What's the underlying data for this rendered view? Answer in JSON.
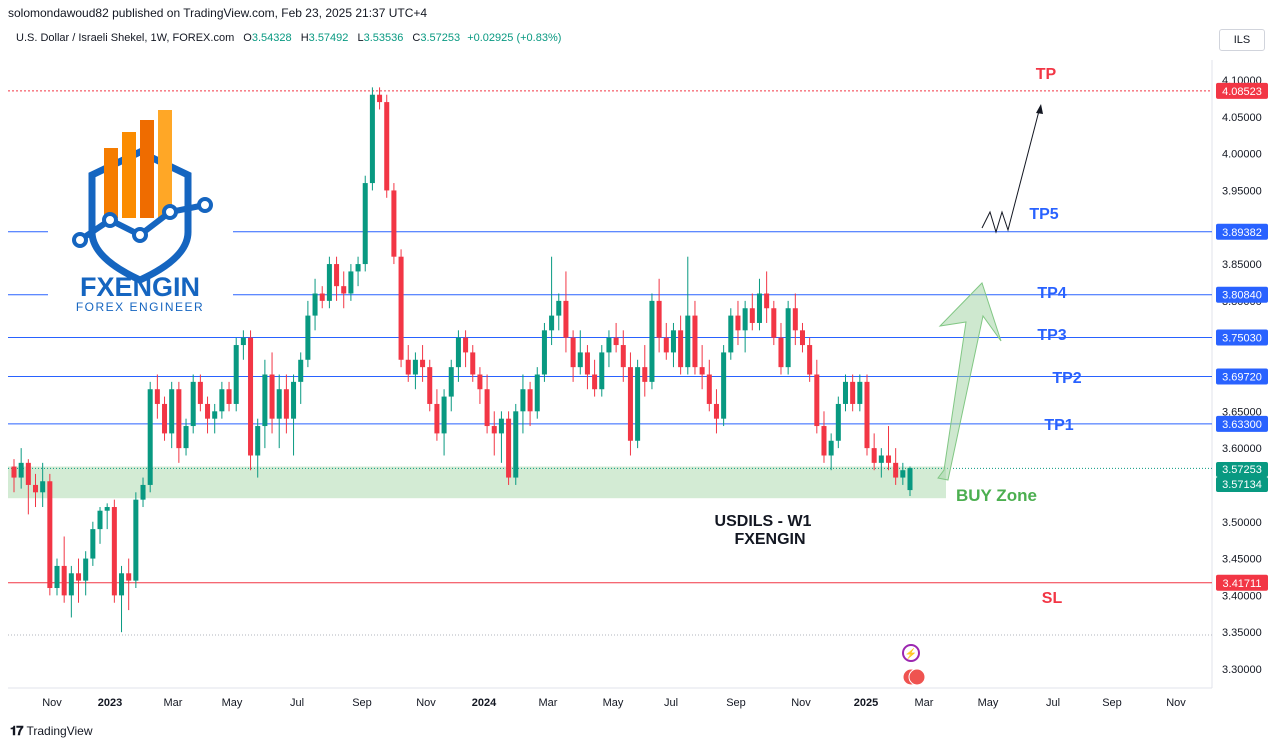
{
  "header": {
    "publisher": "solomondawoud82 published on TradingView.com, Feb 23, 2025 21:37 UTC+4",
    "symbol": "U.S. Dollar / Israeli Shekel, 1W, FOREX.com",
    "o_label": "O",
    "o_value": "3.54328",
    "h_label": "H",
    "h_value": "3.57492",
    "l_label": "L",
    "l_value": "3.53536",
    "c_label": "C",
    "c_value": "3.57253",
    "change": "+0.02925 (+0.83%)",
    "currency": "ILS"
  },
  "footer": {
    "brand": "TradingView"
  },
  "logo": {
    "name": "FXENGIN",
    "tagline": "FOREX ENGINEER"
  },
  "annotations": {
    "title_line1": "USDILS - W1",
    "title_line2": "FXENGIN",
    "buy_zone": "BUY Zone"
  },
  "colors": {
    "up": "#089981",
    "down": "#f23645",
    "tp_line": "#2962ff",
    "sl_line": "#f23645",
    "tp_text": "#2962ff",
    "buy_zone": "#c8e6c9",
    "buy_text": "#4caf50",
    "arrow": "#a5d6a7"
  },
  "chart_data": {
    "type": "candlestick",
    "symbol": "USDILS",
    "timeframe": "1W",
    "ylim": [
      3.27,
      4.12
    ],
    "y_ticks": [
      "4.10000",
      "4.05000",
      "4.00000",
      "3.95000",
      "3.90000",
      "3.85000",
      "3.80000",
      "3.75000",
      "3.70000",
      "3.65000",
      "3.60000",
      "3.55000",
      "3.50000",
      "3.45000",
      "3.40000",
      "3.35000",
      "3.30000"
    ],
    "x_labels": [
      "Nov",
      "2023",
      "Mar",
      "May",
      "Jul",
      "Sep",
      "Nov",
      "2024",
      "Mar",
      "May",
      "Jul",
      "Sep",
      "Nov",
      "2025",
      "Mar",
      "May",
      "Jul",
      "Sep",
      "Nov"
    ],
    "bold_x_labels": [
      "2023",
      "2024",
      "2025"
    ],
    "levels": [
      {
        "label": "TP",
        "value": 4.08523,
        "tag": "4.08523",
        "color": "#f23645",
        "style": "dotted"
      },
      {
        "label": "TP5",
        "value": 3.89382,
        "tag": "3.89382",
        "color": "#2962ff",
        "style": "solid"
      },
      {
        "label": "TP4",
        "value": 3.8084,
        "tag": "3.80840",
        "color": "#2962ff",
        "style": "solid"
      },
      {
        "label": "TP3",
        "value": 3.7503,
        "tag": "3.75030",
        "color": "#2962ff",
        "style": "solid"
      },
      {
        "label": "TP2",
        "value": 3.6972,
        "tag": "3.69720",
        "color": "#2962ff",
        "style": "solid"
      },
      {
        "label": "TP1",
        "value": 3.633,
        "tag": "3.63300",
        "color": "#2962ff",
        "style": "solid"
      },
      {
        "label": "SL",
        "value": 3.41711,
        "tag": "3.41711",
        "color": "#f23645",
        "style": "solid"
      }
    ],
    "price_tags": [
      {
        "value": 3.57253,
        "tag": "3.57253",
        "color": "#089981"
      },
      {
        "value": 3.57134,
        "tag": "3.57134",
        "color": "#089981"
      }
    ],
    "buy_zone": [
      3.532,
      3.575
    ],
    "candles": [
      [
        3.575,
        3.585,
        3.54,
        3.56
      ],
      [
        3.56,
        3.6,
        3.545,
        3.58
      ],
      [
        3.58,
        3.585,
        3.51,
        3.55
      ],
      [
        3.55,
        3.565,
        3.52,
        3.54
      ],
      [
        3.54,
        3.58,
        3.52,
        3.555
      ],
      [
        3.555,
        3.565,
        3.4,
        3.41
      ],
      [
        3.41,
        3.45,
        3.4,
        3.44
      ],
      [
        3.44,
        3.48,
        3.39,
        3.4
      ],
      [
        3.4,
        3.44,
        3.37,
        3.43
      ],
      [
        3.43,
        3.45,
        3.39,
        3.42
      ],
      [
        3.42,
        3.46,
        3.4,
        3.45
      ],
      [
        3.45,
        3.5,
        3.44,
        3.49
      ],
      [
        3.49,
        3.52,
        3.47,
        3.515
      ],
      [
        3.515,
        3.525,
        3.49,
        3.52
      ],
      [
        3.52,
        3.53,
        3.39,
        3.4
      ],
      [
        3.4,
        3.44,
        3.35,
        3.43
      ],
      [
        3.43,
        3.45,
        3.38,
        3.42
      ],
      [
        3.42,
        3.54,
        3.41,
        3.53
      ],
      [
        3.53,
        3.56,
        3.52,
        3.55
      ],
      [
        3.55,
        3.69,
        3.54,
        3.68
      ],
      [
        3.68,
        3.7,
        3.64,
        3.66
      ],
      [
        3.66,
        3.67,
        3.61,
        3.62
      ],
      [
        3.62,
        3.69,
        3.6,
        3.68
      ],
      [
        3.68,
        3.69,
        3.58,
        3.6
      ],
      [
        3.6,
        3.64,
        3.59,
        3.63
      ],
      [
        3.63,
        3.7,
        3.62,
        3.69
      ],
      [
        3.69,
        3.7,
        3.65,
        3.66
      ],
      [
        3.66,
        3.67,
        3.62,
        3.64
      ],
      [
        3.64,
        3.66,
        3.62,
        3.65
      ],
      [
        3.65,
        3.69,
        3.64,
        3.68
      ],
      [
        3.68,
        3.69,
        3.65,
        3.66
      ],
      [
        3.66,
        3.75,
        3.65,
        3.74
      ],
      [
        3.74,
        3.76,
        3.72,
        3.75
      ],
      [
        3.75,
        3.76,
        3.57,
        3.59
      ],
      [
        3.59,
        3.64,
        3.56,
        3.63
      ],
      [
        3.63,
        3.72,
        3.6,
        3.7
      ],
      [
        3.7,
        3.73,
        3.62,
        3.64
      ],
      [
        3.64,
        3.7,
        3.6,
        3.68
      ],
      [
        3.68,
        3.7,
        3.62,
        3.64
      ],
      [
        3.64,
        3.7,
        3.59,
        3.69
      ],
      [
        3.69,
        3.73,
        3.66,
        3.72
      ],
      [
        3.72,
        3.8,
        3.71,
        3.78
      ],
      [
        3.78,
        3.83,
        3.76,
        3.81
      ],
      [
        3.81,
        3.82,
        3.79,
        3.8
      ],
      [
        3.8,
        3.86,
        3.79,
        3.85
      ],
      [
        3.85,
        3.86,
        3.8,
        3.82
      ],
      [
        3.82,
        3.84,
        3.79,
        3.81
      ],
      [
        3.81,
        3.85,
        3.8,
        3.84
      ],
      [
        3.84,
        3.86,
        3.82,
        3.85
      ],
      [
        3.85,
        3.97,
        3.84,
        3.96
      ],
      [
        3.96,
        4.09,
        3.95,
        4.08
      ],
      [
        4.08,
        4.09,
        4.06,
        4.07
      ],
      [
        4.07,
        4.08,
        3.94,
        3.95
      ],
      [
        3.95,
        3.96,
        3.85,
        3.86
      ],
      [
        3.86,
        3.87,
        3.71,
        3.72
      ],
      [
        3.72,
        3.74,
        3.69,
        3.7
      ],
      [
        3.7,
        3.73,
        3.68,
        3.72
      ],
      [
        3.72,
        3.74,
        3.69,
        3.71
      ],
      [
        3.71,
        3.72,
        3.65,
        3.66
      ],
      [
        3.66,
        3.68,
        3.61,
        3.62
      ],
      [
        3.62,
        3.68,
        3.59,
        3.67
      ],
      [
        3.67,
        3.72,
        3.65,
        3.71
      ],
      [
        3.71,
        3.76,
        3.69,
        3.75
      ],
      [
        3.75,
        3.76,
        3.71,
        3.73
      ],
      [
        3.73,
        3.74,
        3.69,
        3.7
      ],
      [
        3.7,
        3.71,
        3.66,
        3.68
      ],
      [
        3.68,
        3.7,
        3.62,
        3.63
      ],
      [
        3.63,
        3.65,
        3.59,
        3.62
      ],
      [
        3.62,
        3.65,
        3.58,
        3.64
      ],
      [
        3.64,
        3.65,
        3.55,
        3.56
      ],
      [
        3.56,
        3.66,
        3.55,
        3.65
      ],
      [
        3.65,
        3.7,
        3.62,
        3.68
      ],
      [
        3.68,
        3.69,
        3.63,
        3.65
      ],
      [
        3.65,
        3.71,
        3.64,
        3.7
      ],
      [
        3.7,
        3.77,
        3.69,
        3.76
      ],
      [
        3.76,
        3.86,
        3.74,
        3.78
      ],
      [
        3.78,
        3.81,
        3.76,
        3.8
      ],
      [
        3.8,
        3.84,
        3.73,
        3.75
      ],
      [
        3.75,
        3.76,
        3.69,
        3.71
      ],
      [
        3.71,
        3.76,
        3.7,
        3.73
      ],
      [
        3.73,
        3.74,
        3.68,
        3.7
      ],
      [
        3.7,
        3.72,
        3.67,
        3.68
      ],
      [
        3.68,
        3.74,
        3.67,
        3.73
      ],
      [
        3.73,
        3.76,
        3.71,
        3.75
      ],
      [
        3.75,
        3.77,
        3.73,
        3.74
      ],
      [
        3.74,
        3.76,
        3.69,
        3.71
      ],
      [
        3.71,
        3.73,
        3.59,
        3.61
      ],
      [
        3.61,
        3.72,
        3.6,
        3.71
      ],
      [
        3.71,
        3.74,
        3.67,
        3.69
      ],
      [
        3.69,
        3.81,
        3.68,
        3.8
      ],
      [
        3.8,
        3.83,
        3.73,
        3.75
      ],
      [
        3.75,
        3.77,
        3.72,
        3.73
      ],
      [
        3.73,
        3.77,
        3.71,
        3.76
      ],
      [
        3.76,
        3.78,
        3.7,
        3.71
      ],
      [
        3.71,
        3.86,
        3.7,
        3.78
      ],
      [
        3.78,
        3.8,
        3.7,
        3.71
      ],
      [
        3.71,
        3.74,
        3.68,
        3.7
      ],
      [
        3.7,
        3.72,
        3.65,
        3.66
      ],
      [
        3.66,
        3.68,
        3.62,
        3.64
      ],
      [
        3.64,
        3.74,
        3.63,
        3.73
      ],
      [
        3.73,
        3.79,
        3.72,
        3.78
      ],
      [
        3.78,
        3.8,
        3.74,
        3.76
      ],
      [
        3.76,
        3.8,
        3.73,
        3.79
      ],
      [
        3.79,
        3.81,
        3.76,
        3.77
      ],
      [
        3.77,
        3.83,
        3.76,
        3.81
      ],
      [
        3.81,
        3.84,
        3.77,
        3.79
      ],
      [
        3.79,
        3.8,
        3.74,
        3.75
      ],
      [
        3.75,
        3.77,
        3.7,
        3.71
      ],
      [
        3.71,
        3.8,
        3.7,
        3.79
      ],
      [
        3.79,
        3.81,
        3.74,
        3.76
      ],
      [
        3.76,
        3.77,
        3.73,
        3.74
      ],
      [
        3.74,
        3.75,
        3.69,
        3.7
      ],
      [
        3.7,
        3.72,
        3.62,
        3.63
      ],
      [
        3.63,
        3.65,
        3.58,
        3.59
      ],
      [
        3.59,
        3.62,
        3.57,
        3.61
      ],
      [
        3.61,
        3.67,
        3.6,
        3.66
      ],
      [
        3.66,
        3.7,
        3.65,
        3.69
      ],
      [
        3.69,
        3.7,
        3.65,
        3.66
      ],
      [
        3.66,
        3.7,
        3.65,
        3.69
      ],
      [
        3.69,
        3.7,
        3.59,
        3.6
      ],
      [
        3.6,
        3.62,
        3.57,
        3.58
      ],
      [
        3.58,
        3.6,
        3.56,
        3.59
      ],
      [
        3.59,
        3.63,
        3.57,
        3.58
      ],
      [
        3.58,
        3.6,
        3.55,
        3.56
      ],
      [
        3.56,
        3.58,
        3.55,
        3.57
      ],
      [
        3.543,
        3.575,
        3.535,
        3.573
      ]
    ]
  }
}
